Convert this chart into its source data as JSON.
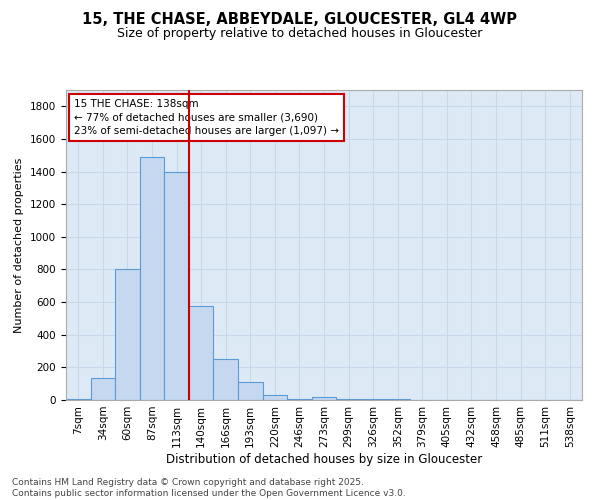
{
  "title_line1": "15, THE CHASE, ABBEYDALE, GLOUCESTER, GL4 4WP",
  "title_line2": "Size of property relative to detached houses in Gloucester",
  "xlabel": "Distribution of detached houses by size in Gloucester",
  "ylabel": "Number of detached properties",
  "bar_labels": [
    "7sqm",
    "34sqm",
    "60sqm",
    "87sqm",
    "113sqm",
    "140sqm",
    "166sqm",
    "193sqm",
    "220sqm",
    "246sqm",
    "273sqm",
    "299sqm",
    "326sqm",
    "352sqm",
    "379sqm",
    "405sqm",
    "432sqm",
    "458sqm",
    "485sqm",
    "511sqm",
    "538sqm"
  ],
  "bar_values": [
    5,
    135,
    800,
    1490,
    1400,
    575,
    250,
    110,
    30,
    5,
    20,
    5,
    5,
    5,
    0,
    0,
    0,
    0,
    0,
    0,
    0
  ],
  "bar_color": "#c5d8f0",
  "bar_edge_color": "#5b9bd5",
  "vline_color": "#cc0000",
  "annotation_text": "15 THE CHASE: 138sqm\n← 77% of detached houses are smaller (3,690)\n23% of semi-detached houses are larger (1,097) →",
  "annotation_box_color": "#cc0000",
  "ylim": [
    0,
    1900
  ],
  "yticks": [
    0,
    200,
    400,
    600,
    800,
    1000,
    1200,
    1400,
    1600,
    1800
  ],
  "grid_color": "#c8d8ea",
  "bg_color": "#ddeaf5",
  "footnote": "Contains HM Land Registry data © Crown copyright and database right 2025.\nContains public sector information licensed under the Open Government Licence v3.0.",
  "title_fontsize": 10.5,
  "subtitle_fontsize": 9,
  "xlabel_fontsize": 8.5,
  "ylabel_fontsize": 8,
  "annotation_fontsize": 7.5,
  "tick_fontsize": 7.5
}
